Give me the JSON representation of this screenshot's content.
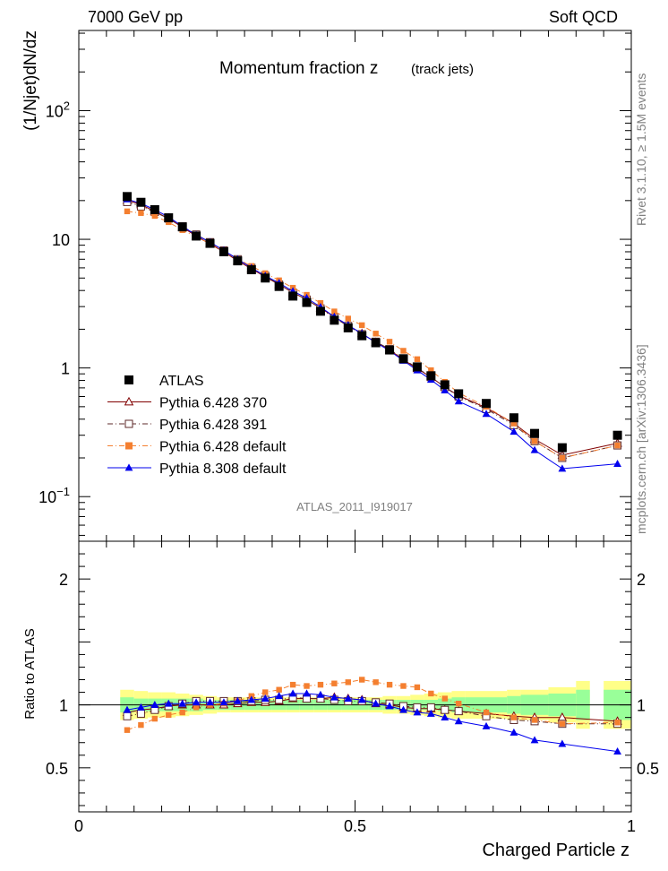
{
  "header": {
    "energy_label": "7000 GeV pp",
    "process_label": "Soft QCD"
  },
  "side_labels": {
    "rivet": "Rivet 3.1.10, ≥ 1.5M events",
    "source": "mcplots.cern.ch [arXiv:1306.3436]"
  },
  "chart_data": [
    {
      "type": "scatter",
      "title": "Momentum fraction z",
      "subtitle": "(track jets)",
      "analysis_label": "ATLAS_2011_I919017",
      "ylabel": "(1/Njet)dN/dz",
      "xlabel": "",
      "ylog": true,
      "xlim": [
        0,
        1
      ],
      "ylim": [
        0.045,
        420
      ],
      "y_ticks": [
        {
          "value": 0.1,
          "base": "10",
          "exp": "−1"
        },
        {
          "value": 1,
          "label": "1"
        },
        {
          "value": 10,
          "label": "10"
        },
        {
          "value": 100,
          "base": "10",
          "exp": "2"
        }
      ],
      "x": [
        0.0875,
        0.1125,
        0.1375,
        0.1625,
        0.1875,
        0.2125,
        0.2375,
        0.2625,
        0.2875,
        0.3125,
        0.3375,
        0.3625,
        0.3875,
        0.4125,
        0.4375,
        0.4625,
        0.4875,
        0.5125,
        0.5375,
        0.5625,
        0.5875,
        0.6125,
        0.6375,
        0.6625,
        0.6875,
        0.7375,
        0.7875,
        0.825,
        0.875,
        0.975
      ],
      "series": [
        {
          "name": "ATLAS",
          "color": "#000000",
          "marker": "square",
          "line": "none",
          "values": [
            21.5,
            19.4,
            17.0,
            14.7,
            12.5,
            10.6,
            9.3,
            8.0,
            6.8,
            5.8,
            5.0,
            4.3,
            3.62,
            3.23,
            2.76,
            2.35,
            2.05,
            1.78,
            1.57,
            1.38,
            1.18,
            1.02,
            0.87,
            0.74,
            0.63,
            0.53,
            0.41,
            0.31,
            0.24,
            0.3
          ]
        },
        {
          "name": "Pythia 6.428 370",
          "color": "#800000",
          "marker": "triangle-open",
          "line": "solid",
          "values": [
            20.1,
            18.6,
            16.5,
            14.5,
            12.4,
            10.6,
            9.2,
            8.0,
            6.8,
            5.9,
            5.1,
            4.45,
            3.85,
            3.4,
            2.92,
            2.5,
            2.15,
            1.85,
            1.58,
            1.38,
            1.16,
            0.99,
            0.85,
            0.71,
            0.61,
            0.49,
            0.37,
            0.28,
            0.21,
            0.26
          ]
        },
        {
          "name": "Pythia 6.428 391",
          "color": "#5e2a2a",
          "marker": "square-open",
          "line": "dashdot",
          "values": [
            19.5,
            18.0,
            16.3,
            14.5,
            12.6,
            10.9,
            9.5,
            8.2,
            7.0,
            6.0,
            5.2,
            4.45,
            3.85,
            3.4,
            2.9,
            2.45,
            2.12,
            1.83,
            1.6,
            1.4,
            1.17,
            1.0,
            0.85,
            0.71,
            0.6,
            0.48,
            0.36,
            0.27,
            0.2,
            0.25
          ]
        },
        {
          "name": "Pythia 6.428 default",
          "color": "#f47f30",
          "marker": "square",
          "line": "dashdot",
          "values": [
            16.5,
            16.0,
            15.2,
            13.6,
            11.8,
            10.4,
            9.3,
            8.1,
            7.0,
            6.2,
            5.45,
            4.8,
            4.2,
            3.7,
            3.2,
            2.75,
            2.42,
            2.15,
            1.85,
            1.6,
            1.36,
            1.17,
            0.96,
            0.78,
            0.64,
            0.5,
            0.37,
            0.27,
            0.2,
            0.25
          ]
        },
        {
          "name": "Pythia 8.308 default",
          "color": "#0000ee",
          "marker": "triangle",
          "line": "solid",
          "values": [
            20.5,
            19.0,
            17.0,
            14.9,
            12.6,
            10.8,
            9.5,
            8.2,
            7.0,
            6.0,
            5.2,
            4.58,
            3.95,
            3.5,
            2.98,
            2.5,
            2.15,
            1.85,
            1.58,
            1.36,
            1.14,
            0.96,
            0.81,
            0.67,
            0.55,
            0.44,
            0.32,
            0.23,
            0.165,
            0.18
          ]
        }
      ]
    },
    {
      "type": "scatter",
      "ylabel": "Ratio to ATLAS",
      "xlabel": "Charged Particle z",
      "xlim": [
        0,
        1
      ],
      "ylim": [
        0.15,
        2.3
      ],
      "x_ticks": [
        "0",
        "0.5",
        "1"
      ],
      "y_ticks": [
        "0.5",
        "1",
        "2"
      ],
      "reference_line": 1,
      "bands": {
        "stat_color": "#99ff99",
        "total_color": "#ffff88",
        "x_edges": [
          0.075,
          0.1,
          0.125,
          0.15,
          0.175,
          0.2,
          0.225,
          0.25,
          0.275,
          0.3,
          0.325,
          0.35,
          0.375,
          0.4,
          0.425,
          0.45,
          0.475,
          0.5,
          0.525,
          0.55,
          0.575,
          0.6,
          0.625,
          0.65,
          0.675,
          0.7,
          0.775,
          0.8,
          0.85,
          0.9
        ],
        "stat_half_width": [
          0.06,
          0.05,
          0.05,
          0.05,
          0.05,
          0.05,
          0.04,
          0.04,
          0.04,
          0.04,
          0.04,
          0.04,
          0.04,
          0.04,
          0.04,
          0.04,
          0.04,
          0.04,
          0.04,
          0.04,
          0.04,
          0.04,
          0.04,
          0.05,
          0.06,
          0.06,
          0.07,
          0.08,
          0.09,
          0.12
        ],
        "total_half_width": [
          0.12,
          0.11,
          0.1,
          0.1,
          0.09,
          0.08,
          0.07,
          0.06,
          0.06,
          0.06,
          0.06,
          0.06,
          0.06,
          0.06,
          0.06,
          0.06,
          0.06,
          0.06,
          0.06,
          0.07,
          0.07,
          0.08,
          0.09,
          0.1,
          0.11,
          0.11,
          0.12,
          0.12,
          0.14,
          0.19
        ]
      },
      "series": [
        {
          "name": "Pythia 6.428 370",
          "color": "#800000",
          "marker": "triangle-open",
          "line": "solid",
          "values": [
            0.94,
            0.96,
            0.97,
            0.99,
            1.0,
            1.0,
            1.0,
            1.0,
            1.01,
            1.02,
            1.02,
            1.03,
            1.05,
            1.05,
            1.05,
            1.06,
            1.05,
            1.04,
            1.01,
            1.0,
            0.98,
            0.97,
            0.97,
            0.96,
            0.95,
            0.93,
            0.91,
            0.9,
            0.9,
            0.87
          ]
        },
        {
          "name": "Pythia 6.428 391",
          "color": "#5e2a2a",
          "marker": "square-open",
          "line": "dashdot",
          "values": [
            0.91,
            0.93,
            0.96,
            0.99,
            1.01,
            1.03,
            1.03,
            1.03,
            1.03,
            1.03,
            1.04,
            1.04,
            1.06,
            1.05,
            1.05,
            1.04,
            1.03,
            1.03,
            1.02,
            1.01,
            0.99,
            0.98,
            0.98,
            0.96,
            0.95,
            0.91,
            0.88,
            0.87,
            0.85,
            0.85
          ]
        },
        {
          "name": "Pythia 6.428 default",
          "color": "#f47f30",
          "marker": "square",
          "line": "dashdot",
          "values": [
            0.8,
            0.84,
            0.89,
            0.92,
            0.94,
            0.98,
            1.0,
            1.01,
            1.03,
            1.07,
            1.1,
            1.12,
            1.16,
            1.15,
            1.16,
            1.17,
            1.18,
            1.2,
            1.18,
            1.16,
            1.15,
            1.14,
            1.09,
            1.05,
            1.01,
            0.94,
            0.9,
            0.88,
            0.85,
            0.86
          ]
        },
        {
          "name": "Pythia 8.308 default",
          "color": "#0000ee",
          "marker": "triangle",
          "line": "solid",
          "values": [
            0.96,
            0.98,
            1.0,
            1.01,
            1.01,
            1.02,
            1.02,
            1.02,
            1.03,
            1.04,
            1.05,
            1.07,
            1.09,
            1.09,
            1.08,
            1.06,
            1.05,
            1.04,
            1.01,
            0.99,
            0.96,
            0.94,
            0.93,
            0.9,
            0.87,
            0.83,
            0.78,
            0.72,
            0.69,
            0.63
          ]
        }
      ]
    }
  ]
}
